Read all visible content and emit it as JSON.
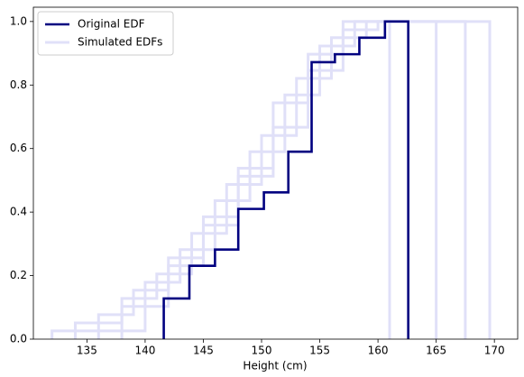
{
  "chart_data": {
    "type": "line",
    "x_label": "Height (cm)",
    "xlim": [
      130.4,
      172.0
    ],
    "ylim": [
      0,
      1.045
    ],
    "xticks": [
      135,
      140,
      145,
      150,
      155,
      160,
      165,
      170
    ],
    "yticks": [
      {
        "value": 0,
        "label": "0.0"
      },
      0.2,
      0.4,
      0.6,
      0.8,
      {
        "value": 1,
        "label": "1.0"
      }
    ],
    "legend": "upper left",
    "series": [
      {
        "name": "Original EDF",
        "color": "#000080",
        "x": [
          141.6,
          141.6,
          143.8,
          143.8,
          146,
          146,
          148,
          148,
          150.2,
          150.2,
          152.3,
          152.3,
          154.3,
          154.3,
          156.3,
          156.3,
          158.4,
          158.4,
          160.6,
          160.6,
          162.6,
          162.6
        ],
        "values": [
          0,
          0.128,
          0.128,
          0.231,
          0.231,
          0.282,
          0.282,
          0.41,
          0.41,
          0.462,
          0.462,
          0.59,
          0.59,
          0.872,
          0.872,
          0.897,
          0.897,
          0.949,
          0.949,
          1.0,
          1.0,
          0
        ]
      },
      {
        "name": "Simulated EDFs",
        "color": "#e0e0f8",
        "runs": [
          {
            "x": [
              132,
              132,
              136,
              136,
              139,
              139,
              142,
              142,
              145,
              145,
              148,
              148,
              151,
              151,
              154,
              154,
              157,
              157,
              169.6,
              169.6
            ],
            "values": [
              0,
              0.026,
              0.026,
              0.077,
              0.077,
              0.154,
              0.154,
              0.256,
              0.256,
              0.385,
              0.385,
              0.538,
              0.538,
              0.744,
              0.744,
              0.897,
              0.897,
              1.0,
              1.0,
              0
            ]
          },
          {
            "x": [
              134,
              134,
              138,
              138,
              141,
              141,
              144,
              144,
              147,
              147,
              150,
              150,
              153,
              153,
              156,
              156,
              159,
              159,
              167.5,
              167.5
            ],
            "values": [
              0,
              0.051,
              0.051,
              0.128,
              0.128,
              0.205,
              0.205,
              0.333,
              0.333,
              0.487,
              0.487,
              0.641,
              0.641,
              0.821,
              0.821,
              0.949,
              0.949,
              1.0,
              1.0,
              0
            ]
          },
          {
            "x": [
              136,
              136,
              140,
              140,
              143,
              143,
              146,
              146,
              149,
              149,
              152,
              152,
              155,
              155,
              158,
              158,
              165,
              165
            ],
            "values": [
              0,
              0.026,
              0.026,
              0.179,
              0.179,
              0.282,
              0.282,
              0.436,
              0.436,
              0.59,
              0.59,
              0.769,
              0.769,
              0.923,
              0.923,
              1.0,
              1.0,
              0
            ]
          },
          {
            "x": [
              138,
              138,
              142,
              142,
              145,
              145,
              148,
              148,
              151,
              151,
              154,
              154,
              157,
              157,
              160,
              160,
              161,
              161
            ],
            "values": [
              0,
              0.103,
              0.103,
              0.231,
              0.231,
              0.359,
              0.359,
              0.513,
              0.513,
              0.667,
              0.667,
              0.846,
              0.846,
              0.974,
              0.974,
              1.0,
              1.0,
              0
            ]
          }
        ]
      }
    ]
  }
}
